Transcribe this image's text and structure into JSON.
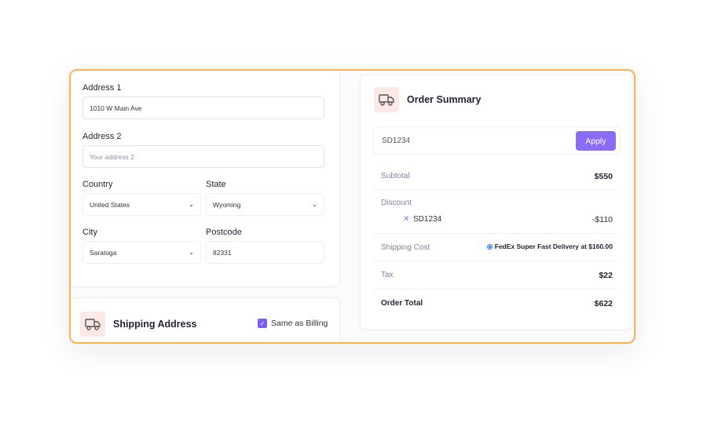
{
  "billing": {
    "address1_label": "Address 1",
    "address1_value": "1010 W Main Ave",
    "address2_label": "Address 2",
    "address2_placeholder": "Your address 2",
    "country_label": "Country",
    "country_value": "United States",
    "state_label": "State",
    "state_value": "Wyoming",
    "city_label": "City",
    "city_value": "Saratoga",
    "postcode_label": "Postcode",
    "postcode_value": "82331"
  },
  "shipping": {
    "title": "Shipping Address",
    "same_as_billing_label": "Same as Billing",
    "same_as_billing_checked": true,
    "icon": "truck-icon"
  },
  "summary": {
    "title": "Order Summary",
    "icon": "truck-icon",
    "coupon_value": "SD1234",
    "apply_label": "Apply",
    "subtotal_label": "Subtotal",
    "subtotal_value": "$550",
    "discount_label": "Discount",
    "discount_code": "SD1234",
    "discount_value": "-$110",
    "shipping_label": "Shipping Cost",
    "shipping_option": "FedEx Super Fast Delivery at $160.00",
    "tax_label": "Tax",
    "tax_value": "$22",
    "total_label": "Order Total",
    "total_value": "$622"
  },
  "colors": {
    "accent": "#8b6cf6",
    "frame": "#f7b24c",
    "icon_bg": "#fde8e8"
  }
}
